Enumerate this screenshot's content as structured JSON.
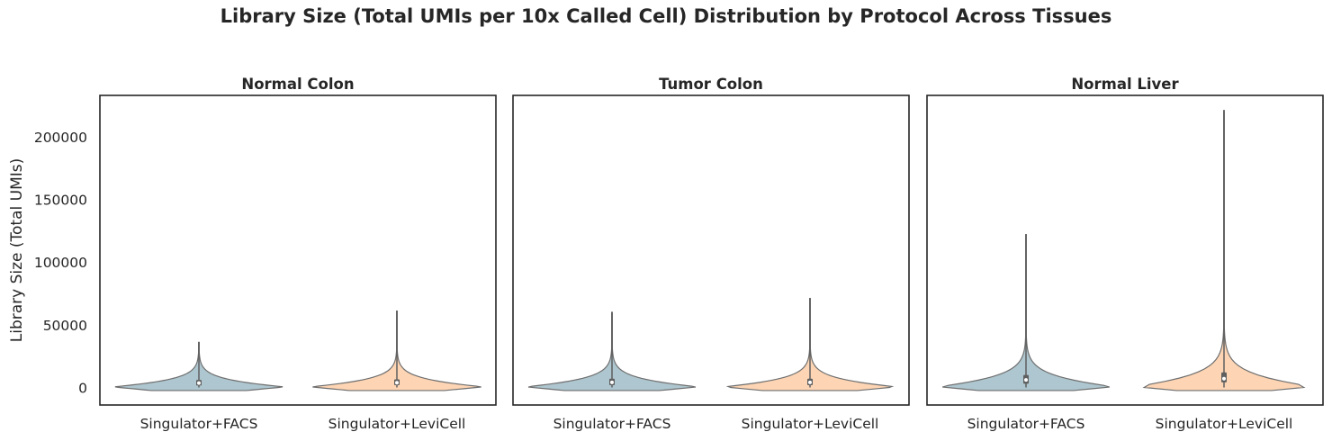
{
  "figure": {
    "suptitle": "Library Size (Total UMIs per 10x Called Cell) Distribution by Protocol Across Tissues"
  },
  "colors": {
    "facs": "#aec6cf",
    "levicell": "#fdd5b4",
    "outline": "#6e6e6e",
    "box": "#5f5f5f",
    "frame": "#262626",
    "text": "#262626"
  },
  "chart_data": {
    "type": "violin",
    "title": "Library Size (Total UMIs per 10x Called Cell) Distribution by Protocol Across Tissues",
    "ylabel": "Library Size (Total UMIs)",
    "shared_y": true,
    "ylim": [
      -14000,
      233000
    ],
    "yticks": [
      0,
      50000,
      100000,
      150000,
      200000
    ],
    "grid": false,
    "categories": [
      "Singulator+FACS",
      "Singulator+LeviCell"
    ],
    "panels": [
      {
        "title": "Normal Colon",
        "series": [
          {
            "name": "Singulator+FACS",
            "color": "#aec6cf",
            "min": 0,
            "q1": 1500,
            "median": 3500,
            "q3": 6000,
            "max": 36000,
            "half_width": 0.87
          },
          {
            "name": "Singulator+LeviCell",
            "color": "#fdd5b4",
            "min": 0,
            "q1": 1800,
            "median": 3800,
            "q3": 6500,
            "max": 61000,
            "half_width": 0.87
          }
        ]
      },
      {
        "title": "Tumor Colon",
        "series": [
          {
            "name": "Singulator+FACS",
            "color": "#aec6cf",
            "min": 0,
            "q1": 1800,
            "median": 4000,
            "q3": 7000,
            "max": 60000,
            "half_width": 0.87
          },
          {
            "name": "Singulator+LeviCell",
            "color": "#fdd5b4",
            "min": 0,
            "q1": 1800,
            "median": 4000,
            "q3": 7000,
            "max": 71000,
            "half_width": 0.87
          }
        ]
      },
      {
        "title": "Normal Liver",
        "series": [
          {
            "name": "Singulator+FACS",
            "color": "#aec6cf",
            "min": 0,
            "q1": 3000,
            "median": 6000,
            "q3": 10000,
            "max": 122000,
            "half_width": 0.87
          },
          {
            "name": "Singulator+LeviCell",
            "color": "#fdd5b4",
            "min": 0,
            "q1": 4000,
            "median": 7000,
            "q3": 12000,
            "max": 221000,
            "half_width": 0.87
          }
        ]
      }
    ]
  }
}
